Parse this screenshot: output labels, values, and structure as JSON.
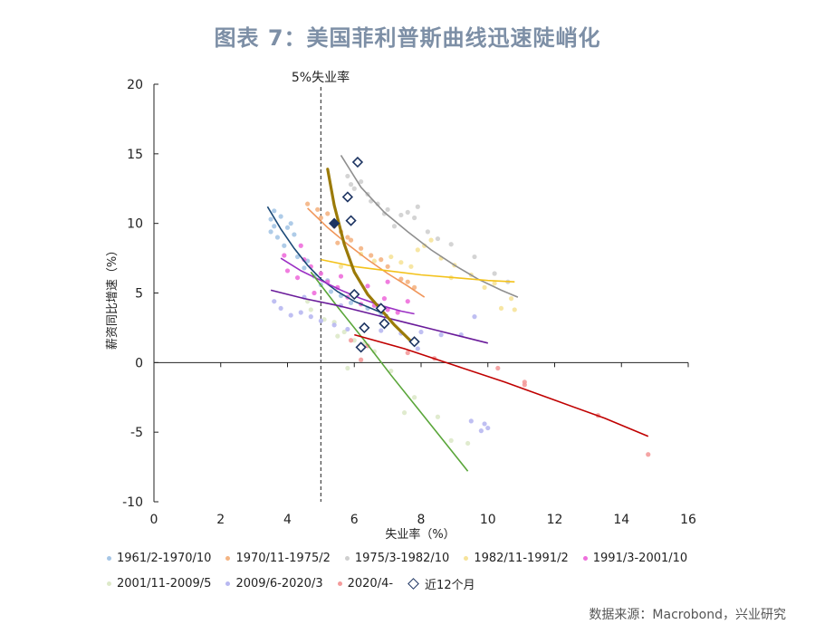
{
  "title": "图表 7：美国菲利普斯曲线迅速陡峭化",
  "source": "数据来源：Macrobond，兴业研究",
  "chart_data": {
    "type": "scatter",
    "xlabel": "失业率（%）",
    "ylabel": "薪资同比增速（%）",
    "xlim": [
      0,
      16
    ],
    "ylim": [
      -10,
      20
    ],
    "x_ticks": [
      0,
      2,
      4,
      6,
      8,
      10,
      12,
      14,
      16
    ],
    "y_ticks": [
      -10,
      -5,
      0,
      5,
      10,
      15,
      20
    ],
    "reference_line": {
      "x": 5,
      "label": "5%失业率"
    },
    "series": [
      {
        "name": "1961/2-1970/10",
        "color": "#a6c6e6",
        "trend_color": "#1c4a78",
        "points": [
          [
            3.5,
            10.3
          ],
          [
            3.6,
            9.8
          ],
          [
            3.8,
            10.5
          ],
          [
            4.0,
            9.7
          ],
          [
            4.2,
            9.2
          ],
          [
            3.7,
            9.0
          ],
          [
            3.9,
            8.4
          ],
          [
            4.3,
            7.6
          ],
          [
            4.5,
            6.8
          ],
          [
            4.8,
            6.2
          ],
          [
            5.0,
            5.6
          ],
          [
            5.3,
            5.1
          ],
          [
            5.6,
            4.8
          ],
          [
            5.9,
            4.3
          ],
          [
            6.4,
            3.9
          ],
          [
            6.8,
            3.5
          ],
          [
            3.6,
            10.9
          ],
          [
            4.1,
            10.0
          ],
          [
            3.5,
            9.4
          ],
          [
            4.6,
            7.3
          ],
          [
            5.2,
            5.9
          ]
        ],
        "trend": [
          [
            3.4,
            11.2
          ],
          [
            3.8,
            9.6
          ],
          [
            4.2,
            8.2
          ],
          [
            4.6,
            7.0
          ],
          [
            5.0,
            6.0
          ],
          [
            5.5,
            5.1
          ],
          [
            6.0,
            4.4
          ],
          [
            6.5,
            3.9
          ],
          [
            7.0,
            3.4
          ]
        ]
      },
      {
        "name": "1970/11-1975/2",
        "color": "#f4b483",
        "trend_color": "#f0965a",
        "points": [
          [
            4.6,
            11.4
          ],
          [
            4.9,
            11.0
          ],
          [
            5.0,
            10.4
          ],
          [
            5.4,
            9.8
          ],
          [
            5.6,
            9.4
          ],
          [
            5.9,
            8.8
          ],
          [
            6.2,
            8.2
          ],
          [
            6.5,
            7.7
          ],
          [
            7.0,
            6.9
          ],
          [
            7.4,
            6.0
          ],
          [
            7.8,
            5.4
          ],
          [
            5.2,
            10.7
          ],
          [
            5.8,
            9.0
          ],
          [
            6.8,
            7.4
          ],
          [
            7.6,
            5.8
          ],
          [
            5.5,
            8.6
          ]
        ],
        "trend": [
          [
            4.6,
            11.1
          ],
          [
            5.2,
            9.7
          ],
          [
            5.8,
            8.5
          ],
          [
            6.4,
            7.4
          ],
          [
            7.0,
            6.4
          ],
          [
            7.6,
            5.5
          ],
          [
            8.1,
            4.7
          ]
        ]
      },
      {
        "name": "1975/3-1982/10",
        "color": "#cfcfcf",
        "trend_color": "#8f8f8f",
        "points": [
          [
            5.8,
            13.4
          ],
          [
            6.0,
            12.5
          ],
          [
            6.2,
            13.0
          ],
          [
            6.7,
            11.4
          ],
          [
            7.0,
            11.0
          ],
          [
            7.4,
            10.6
          ],
          [
            7.8,
            10.4
          ],
          [
            6.4,
            12.1
          ],
          [
            6.9,
            10.7
          ],
          [
            7.2,
            9.8
          ],
          [
            7.6,
            10.8
          ],
          [
            8.2,
            9.4
          ],
          [
            8.9,
            8.5
          ],
          [
            9.6,
            7.6
          ],
          [
            10.2,
            6.4
          ],
          [
            10.6,
            5.8
          ],
          [
            6.5,
            11.6
          ],
          [
            7.9,
            11.2
          ],
          [
            5.9,
            12.8
          ],
          [
            8.5,
            8.9
          ]
        ],
        "trend": [
          [
            5.6,
            14.9
          ],
          [
            6.2,
            12.6
          ],
          [
            6.9,
            10.8
          ],
          [
            7.6,
            9.4
          ],
          [
            8.3,
            8.1
          ],
          [
            9.0,
            7.0
          ],
          [
            9.7,
            6.0
          ],
          [
            10.4,
            5.2
          ],
          [
            10.9,
            4.7
          ]
        ]
      },
      {
        "name": "1982/11-1991/2",
        "color": "#f6e39a",
        "trend_color": "#f3c21a",
        "points": [
          [
            7.1,
            7.6
          ],
          [
            7.4,
            7.2
          ],
          [
            7.9,
            8.1
          ],
          [
            8.3,
            8.8
          ],
          [
            8.6,
            7.5
          ],
          [
            9.0,
            7.0
          ],
          [
            9.5,
            6.3
          ],
          [
            10.2,
            5.7
          ],
          [
            10.7,
            4.6
          ],
          [
            10.8,
            3.8
          ],
          [
            6.2,
            7.8
          ],
          [
            7.7,
            6.9
          ],
          [
            8.1,
            8.4
          ],
          [
            5.6,
            6.9
          ],
          [
            6.6,
            7.3
          ],
          [
            9.9,
            5.4
          ],
          [
            10.4,
            3.9
          ],
          [
            8.9,
            6.1
          ]
        ],
        "trend": [
          [
            5.0,
            7.4
          ],
          [
            6.0,
            6.9
          ],
          [
            7.0,
            6.6
          ],
          [
            8.0,
            6.3
          ],
          [
            9.0,
            6.1
          ],
          [
            10.0,
            5.9
          ],
          [
            10.8,
            5.8
          ]
        ]
      },
      {
        "name": "1991/3-2001/10",
        "color": "#ee6fdc",
        "trend_color": "#9b2fc4",
        "points": [
          [
            3.9,
            7.7
          ],
          [
            4.0,
            6.6
          ],
          [
            4.3,
            6.1
          ],
          [
            4.5,
            7.4
          ],
          [
            4.7,
            6.9
          ],
          [
            5.0,
            6.4
          ],
          [
            5.2,
            5.8
          ],
          [
            5.5,
            5.4
          ],
          [
            5.8,
            4.7
          ],
          [
            6.2,
            4.2
          ],
          [
            6.6,
            4.1
          ],
          [
            7.0,
            3.8
          ],
          [
            7.3,
            3.6
          ],
          [
            7.6,
            4.4
          ],
          [
            7.0,
            5.8
          ],
          [
            4.4,
            8.4
          ],
          [
            5.6,
            6.2
          ],
          [
            6.9,
            4.6
          ],
          [
            4.8,
            5.0
          ],
          [
            6.4,
            5.5
          ]
        ],
        "trend": [
          [
            3.8,
            7.5
          ],
          [
            4.4,
            6.6
          ],
          [
            5.0,
            5.9
          ],
          [
            5.6,
            5.2
          ],
          [
            6.2,
            4.6
          ],
          [
            6.8,
            4.1
          ],
          [
            7.4,
            3.7
          ],
          [
            7.8,
            3.5
          ]
        ]
      },
      {
        "name": "2001/11-2009/5",
        "color": "#dde9c9",
        "trend_color": "#5aa63a",
        "points": [
          [
            4.6,
            4.4
          ],
          [
            4.7,
            3.8
          ],
          [
            5.1,
            3.1
          ],
          [
            5.4,
            2.9
          ],
          [
            5.7,
            2.2
          ],
          [
            6.0,
            1.6
          ],
          [
            6.3,
            1.4
          ],
          [
            7.1,
            -0.6
          ],
          [
            7.8,
            -2.5
          ],
          [
            8.5,
            -3.9
          ],
          [
            9.4,
            -5.8
          ],
          [
            5.8,
            -0.4
          ],
          [
            6.6,
            0.8
          ],
          [
            8.9,
            -5.6
          ],
          [
            7.5,
            -3.6
          ],
          [
            5.5,
            1.9
          ]
        ],
        "trend": [
          [
            4.7,
            6.5
          ],
          [
            5.5,
            4.0
          ],
          [
            6.3,
            1.6
          ],
          [
            7.1,
            -0.9
          ],
          [
            7.9,
            -3.3
          ],
          [
            8.7,
            -5.7
          ],
          [
            9.4,
            -7.8
          ]
        ]
      },
      {
        "name": "2009/6-2020/3",
        "color": "#b8b8f1",
        "trend_color": "#6a1b9a",
        "points": [
          [
            3.6,
            4.4
          ],
          [
            3.8,
            3.9
          ],
          [
            4.1,
            3.4
          ],
          [
            4.4,
            3.6
          ],
          [
            4.7,
            3.3
          ],
          [
            5.0,
            3.0
          ],
          [
            5.4,
            2.7
          ],
          [
            5.8,
            2.4
          ],
          [
            6.3,
            2.6
          ],
          [
            6.8,
            2.3
          ],
          [
            7.4,
            2.1
          ],
          [
            8.0,
            2.2
          ],
          [
            8.6,
            2.0
          ],
          [
            9.2,
            2.0
          ],
          [
            9.6,
            3.3
          ],
          [
            9.9,
            -4.4
          ],
          [
            9.8,
            -4.9
          ],
          [
            10.0,
            -4.7
          ],
          [
            9.5,
            -4.2
          ],
          [
            4.5,
            4.7
          ],
          [
            5.6,
            4.1
          ],
          [
            7.9,
            1.0
          ]
        ],
        "trend": [
          [
            3.5,
            5.2
          ],
          [
            4.5,
            4.6
          ],
          [
            5.5,
            4.1
          ],
          [
            6.5,
            3.5
          ],
          [
            7.5,
            2.9
          ],
          [
            8.5,
            2.3
          ],
          [
            9.5,
            1.7
          ],
          [
            10.0,
            1.4
          ]
        ]
      },
      {
        "name": "2020/4-",
        "color": "#f49b9b",
        "trend_color": "#c00000",
        "points": [
          [
            5.9,
            1.6
          ],
          [
            6.2,
            0.2
          ],
          [
            6.4,
            1.2
          ],
          [
            7.6,
            0.7
          ],
          [
            8.4,
            0.3
          ],
          [
            10.3,
            -0.4
          ],
          [
            11.1,
            -1.4
          ],
          [
            11.1,
            -1.6
          ],
          [
            13.3,
            -3.8
          ],
          [
            14.8,
            -6.6
          ]
        ],
        "trend": [
          [
            6.0,
            2.0
          ],
          [
            7.5,
            1.0
          ],
          [
            9.0,
            -0.2
          ],
          [
            10.5,
            -1.4
          ],
          [
            12.0,
            -2.7
          ],
          [
            13.5,
            -4.0
          ],
          [
            14.8,
            -5.3
          ]
        ]
      }
    ],
    "recent_12m": {
      "name": "近12个月",
      "marker": "diamond",
      "edge_color": "#1d3462",
      "points": [
        [
          5.4,
          10.0
        ],
        [
          5.8,
          11.9
        ],
        [
          5.9,
          10.2
        ],
        [
          6.1,
          14.4
        ],
        [
          6.0,
          4.9
        ],
        [
          6.2,
          1.1
        ],
        [
          6.3,
          2.5
        ],
        [
          6.8,
          3.9
        ],
        [
          6.9,
          2.8
        ],
        [
          7.8,
          1.5
        ]
      ],
      "trend_color": "#9b7a08",
      "trend": [
        [
          5.2,
          13.9
        ],
        [
          5.4,
          11.3
        ],
        [
          5.7,
          8.5
        ],
        [
          6.0,
          6.5
        ],
        [
          6.4,
          4.9
        ],
        [
          6.8,
          3.8
        ],
        [
          7.2,
          2.7
        ],
        [
          7.5,
          2.0
        ],
        [
          7.8,
          1.3
        ]
      ]
    }
  }
}
